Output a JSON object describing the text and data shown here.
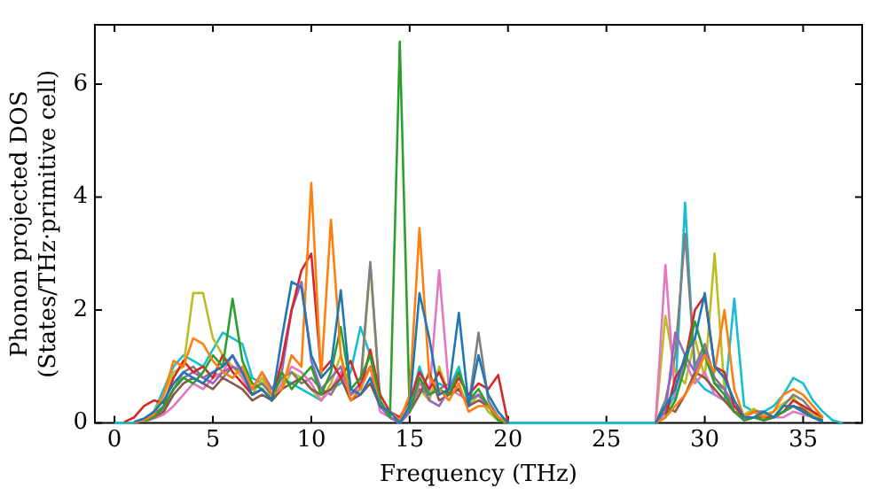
{
  "chart_data": {
    "type": "line",
    "xlabel": "Frequency (THz)",
    "ylabel": "Phonon projected DOS\n(States/THz·primitive cell)",
    "x": [
      0,
      0.5,
      1,
      1.5,
      2,
      2.5,
      3,
      3.5,
      4,
      4.5,
      5,
      5.5,
      6,
      6.5,
      7,
      7.5,
      8,
      8.5,
      9,
      9.5,
      10,
      10.5,
      11,
      11.5,
      12,
      12.5,
      13,
      13.5,
      14,
      14.5,
      15,
      15.5,
      16,
      16.5,
      17,
      17.5,
      18,
      18.5,
      19,
      19.5,
      20,
      20.5,
      21,
      21.5,
      22,
      22.5,
      23,
      23.5,
      24,
      24.5,
      25,
      25.5,
      26,
      26.5,
      27,
      27.5,
      28,
      28.5,
      29,
      29.5,
      30,
      30.5,
      31,
      31.5,
      32,
      32.5,
      33,
      33.5,
      34,
      34.5,
      35,
      35.5,
      36,
      36.5,
      37
    ],
    "series": [
      {
        "color": "#1f77b4",
        "values": [
          null,
          null,
          0.02,
          0.08,
          0.2,
          0.4,
          0.7,
          0.9,
          0.8,
          0.7,
          0.9,
          1.0,
          1.2,
          0.9,
          0.5,
          0.6,
          0.4,
          1.5,
          2.5,
          2.4,
          1.2,
          0.8,
          1.0,
          2.35,
          0.6,
          0.5,
          0.8,
          0.3,
          0.2,
          0,
          0.3,
          2.3,
          1.5,
          0.5,
          0.6,
          1.95,
          0.3,
          1.2,
          0.5,
          0.2,
          0,
          null,
          null,
          null,
          null,
          null,
          null,
          null,
          null,
          null,
          null,
          null,
          null,
          null,
          null,
          0,
          0.3,
          0.6,
          1.2,
          1.5,
          2.3,
          1.0,
          0.8,
          0.4,
          0.1,
          0.1,
          0.2,
          0.1,
          0.3,
          0.3,
          0.2,
          0.1,
          0.02,
          null,
          null
        ]
      },
      {
        "color": "#ff7f0e",
        "values": [
          null,
          null,
          0.01,
          0.05,
          0.15,
          0.5,
          1.1,
          1.0,
          1.5,
          1.4,
          1.1,
          0.9,
          0.8,
          1.0,
          0.6,
          0.9,
          0.5,
          0.6,
          1.2,
          1.0,
          4.25,
          0.8,
          3.6,
          1.2,
          0.4,
          0.6,
          1.0,
          0.3,
          0.2,
          0.05,
          0.5,
          3.45,
          0.8,
          0.6,
          0.4,
          0.7,
          0.2,
          0.3,
          0.3,
          0.1,
          0,
          null,
          null,
          null,
          null,
          null,
          null,
          null,
          null,
          null,
          null,
          null,
          null,
          null,
          null,
          0,
          0.1,
          0.3,
          0.5,
          0.8,
          1.2,
          0.9,
          2.0,
          0.6,
          0.1,
          0.2,
          0.1,
          0.2,
          0.5,
          0.6,
          0.5,
          0.3,
          0.1,
          null,
          null
        ]
      },
      {
        "color": "#2ca02c",
        "values": [
          null,
          null,
          0.01,
          0.04,
          0.1,
          0.3,
          0.6,
          0.8,
          0.7,
          0.9,
          1.2,
          1.0,
          2.2,
          1.1,
          0.7,
          0.6,
          0.4,
          0.9,
          0.6,
          0.8,
          1.0,
          0.5,
          0.9,
          1.7,
          0.6,
          0.8,
          1.2,
          0.4,
          0.1,
          6.75,
          0.2,
          0.8,
          0.5,
          0.6,
          0.5,
          0.9,
          0.4,
          0.6,
          0.3,
          0.05,
          0,
          null,
          null,
          null,
          null,
          null,
          null,
          null,
          null,
          null,
          null,
          null,
          null,
          null,
          null,
          0,
          0.1,
          0.4,
          1.0,
          1.8,
          1.2,
          0.7,
          0.5,
          0.2,
          0.05,
          0.1,
          0.05,
          0.1,
          0.2,
          0.3,
          0.2,
          0.1,
          0.05,
          null,
          null
        ]
      },
      {
        "color": "#d62728",
        "values": [
          null,
          0.02,
          0.1,
          0.3,
          0.4,
          0.35,
          0.8,
          1.1,
          0.9,
          1.0,
          0.8,
          1.2,
          0.9,
          0.7,
          0.5,
          0.6,
          0.4,
          1.1,
          2.0,
          2.7,
          3.0,
          0.9,
          1.1,
          0.8,
          1.1,
          0.6,
          1.3,
          0.5,
          0.2,
          0.1,
          0.4,
          0.9,
          0.6,
          0.9,
          0.5,
          0.8,
          0.5,
          0.7,
          0.6,
          0.85,
          0,
          null,
          null,
          null,
          null,
          null,
          null,
          null,
          null,
          null,
          null,
          null,
          null,
          null,
          null,
          0,
          0.1,
          0.8,
          1.1,
          2.0,
          2.25,
          1.0,
          0.9,
          0.3,
          0.1,
          0.2,
          0.1,
          0.1,
          0.2,
          0.4,
          0.3,
          0.2,
          0.1,
          null,
          null
        ]
      },
      {
        "color": "#9467bd",
        "values": [
          null,
          null,
          null,
          0.05,
          0.15,
          0.3,
          0.6,
          0.8,
          0.9,
          0.8,
          0.7,
          0.9,
          1.0,
          0.9,
          0.6,
          0.9,
          0.6,
          0.9,
          2.0,
          2.5,
          1.1,
          0.6,
          0.8,
          1.0,
          0.5,
          0.7,
          1.0,
          0.3,
          0.1,
          0,
          0.2,
          0.8,
          0.4,
          0.3,
          0.6,
          0.9,
          0.4,
          0.5,
          0.3,
          0.1,
          0,
          null,
          null,
          null,
          null,
          null,
          null,
          null,
          null,
          null,
          null,
          null,
          null,
          null,
          null,
          0,
          0.2,
          1.6,
          1.2,
          0.9,
          1.3,
          0.7,
          0.6,
          0.2,
          0.05,
          0.1,
          0.05,
          0.1,
          0.2,
          0.3,
          0.2,
          0.1,
          0.05,
          null,
          null
        ]
      },
      {
        "color": "#8c564b",
        "values": [
          null,
          null,
          null,
          0.03,
          0.1,
          0.2,
          0.5,
          0.7,
          0.8,
          0.7,
          0.6,
          0.8,
          0.7,
          0.6,
          0.4,
          0.5,
          0.4,
          0.6,
          0.7,
          0.8,
          0.6,
          0.5,
          0.6,
          0.8,
          0.4,
          0.5,
          0.7,
          0.3,
          0.1,
          0,
          0.2,
          0.5,
          0.9,
          0.4,
          0.5,
          0.6,
          0.3,
          0.4,
          0.3,
          0.1,
          0,
          null,
          null,
          null,
          null,
          null,
          null,
          null,
          null,
          null,
          null,
          null,
          null,
          null,
          null,
          0,
          0.3,
          0.2,
          0.5,
          0.9,
          0.8,
          0.6,
          0.4,
          0.2,
          0.1,
          0.1,
          0.1,
          0.1,
          0.2,
          0.3,
          0.25,
          0.1,
          0.05,
          null,
          null
        ]
      },
      {
        "color": "#e377c2",
        "values": [
          null,
          null,
          null,
          0.03,
          0.08,
          0.15,
          0.3,
          0.5,
          0.7,
          0.6,
          0.8,
          0.9,
          1.2,
          0.8,
          0.5,
          0.6,
          0.4,
          0.7,
          1.0,
          0.9,
          0.7,
          0.4,
          0.6,
          0.9,
          0.5,
          0.6,
          1.0,
          0.2,
          0.1,
          0,
          0.2,
          0.7,
          0.5,
          2.7,
          0.6,
          0.5,
          0.4,
          0.5,
          0.3,
          0.1,
          0,
          null,
          null,
          null,
          null,
          null,
          null,
          null,
          null,
          null,
          null,
          null,
          null,
          null,
          null,
          0,
          2.8,
          0.4,
          1.1,
          0.7,
          0.9,
          0.5,
          0.4,
          0.2,
          0.05,
          0.1,
          0.05,
          0.1,
          0.1,
          0.2,
          0.15,
          0.1,
          0.05,
          null,
          null
        ]
      },
      {
        "color": "#7f7f7f",
        "values": [
          null,
          null,
          null,
          0.04,
          0.1,
          0.25,
          0.6,
          0.9,
          1.0,
          0.8,
          0.9,
          0.8,
          1.0,
          0.9,
          0.6,
          0.7,
          0.5,
          0.8,
          0.9,
          0.7,
          0.8,
          0.6,
          0.5,
          0.8,
          0.5,
          0.7,
          2.85,
          0.4,
          0.1,
          0,
          0.3,
          0.6,
          0.5,
          0.6,
          0.7,
          0.6,
          0.3,
          1.6,
          0.4,
          0.1,
          0,
          null,
          null,
          null,
          null,
          null,
          null,
          null,
          null,
          null,
          null,
          null,
          null,
          null,
          null,
          0,
          0.4,
          1.2,
          3.35,
          1.0,
          1.4,
          0.8,
          0.6,
          0.3,
          0.1,
          0.2,
          0.2,
          0.1,
          0.3,
          0.5,
          0.4,
          0.2,
          0.1,
          null,
          null
        ]
      },
      {
        "color": "#bcbd22",
        "values": [
          null,
          null,
          null,
          0.05,
          0.2,
          0.5,
          0.9,
          1.0,
          2.3,
          2.3,
          1.5,
          1.2,
          1.0,
          0.8,
          0.5,
          0.8,
          0.4,
          0.6,
          0.9,
          0.8,
          0.6,
          0.4,
          0.7,
          1.2,
          0.5,
          0.6,
          2.8,
          0.3,
          0.1,
          0,
          0.2,
          0.6,
          0.4,
          1.0,
          0.5,
          0.6,
          0.3,
          0.5,
          0.2,
          0.05,
          0,
          null,
          null,
          null,
          null,
          null,
          null,
          null,
          null,
          null,
          null,
          null,
          null,
          null,
          null,
          0,
          1.9,
          0.9,
          0.7,
          1.5,
          0.8,
          3.0,
          0.6,
          0.2,
          0.15,
          0.25,
          0.15,
          0.2,
          0.35,
          0.45,
          0.25,
          0.15,
          0.08,
          null,
          null
        ]
      },
      {
        "color": "#17becf",
        "values": [
          0,
          0,
          0.01,
          0.05,
          0.2,
          0.6,
          1.0,
          1.2,
          1.1,
          1.0,
          1.3,
          1.6,
          1.5,
          1.4,
          0.8,
          0.7,
          0.5,
          0.8,
          0.7,
          0.6,
          0.5,
          0.4,
          0.6,
          0.7,
          0.9,
          1.7,
          1.2,
          0.3,
          0.1,
          0,
          0.3,
          1.0,
          0.5,
          0.7,
          0.6,
          1.0,
          0.3,
          0.5,
          0.2,
          0.05,
          0,
          0,
          0,
          0,
          0,
          0,
          0,
          0,
          0,
          0,
          0,
          0,
          0,
          0,
          0,
          0,
          0.2,
          0.5,
          3.9,
          0.8,
          0.6,
          0.5,
          0.4,
          2.2,
          0.3,
          0.2,
          0.2,
          0.3,
          0.5,
          0.8,
          0.7,
          0.4,
          0.2,
          0.05,
          0
        ]
      }
    ],
    "xlim": [
      -1,
      38
    ],
    "ylim": [
      0,
      7.05
    ],
    "xticks": [
      0,
      5,
      10,
      15,
      20,
      25,
      30,
      35
    ],
    "yticks": [
      0,
      2,
      4,
      6
    ],
    "grid": false,
    "legend": false,
    "marker": "none",
    "line_style": "solid"
  }
}
